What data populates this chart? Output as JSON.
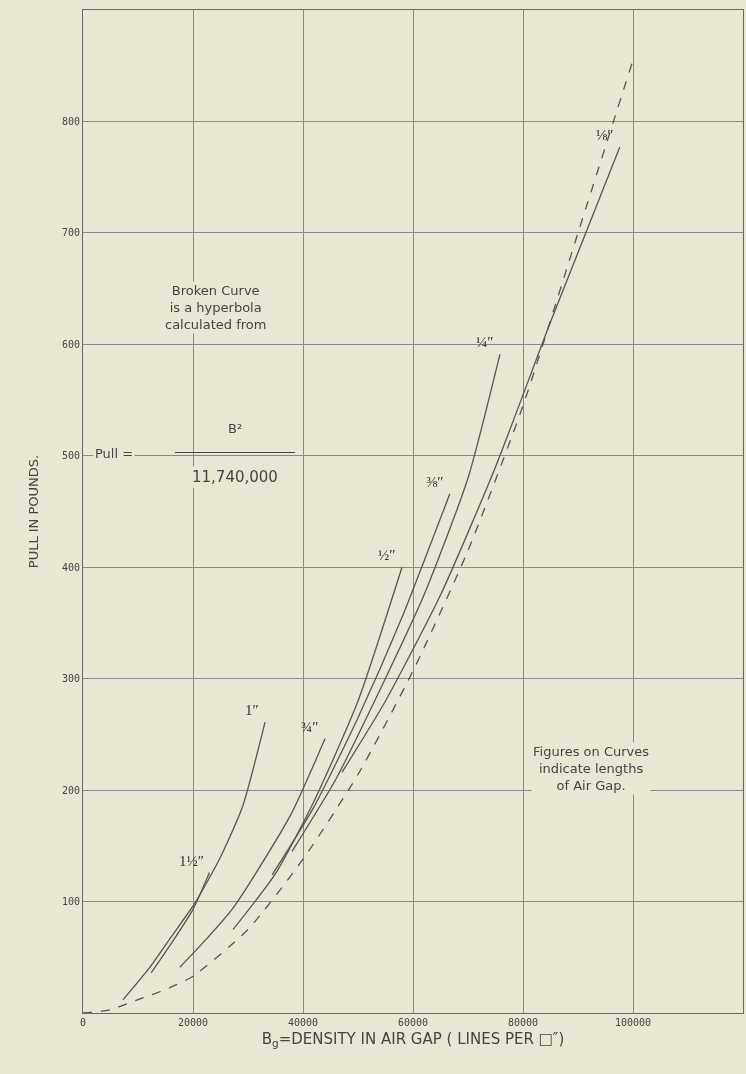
{
  "chart_data": {
    "type": "line",
    "xlabel": "B$_{g}$=DENSITY IN AIR GAP ( LINES PER □″)",
    "ylabel": "PULL IN POUNDS.",
    "annotations": [
      "Broken Curve\nis a hyperbola\ncalculated from",
      "Pull =",
      "B²",
      "11,740,000",
      "Figures on Curves\nindicate lengths\nof Air Gap."
    ],
    "series": [
      {
        "name": "1″",
        "color": "#555555",
        "line_style": "solid",
        "x": [
          7300,
          12000,
          16000,
          20400,
          25000,
          29000,
          33100
        ],
        "values": [
          12,
          40,
          68,
          99,
          140,
          185,
          261
        ]
      },
      {
        "name": "1½″",
        "color": "#555555",
        "line_style": "solid",
        "x": [
          12400,
          16000,
          20000,
          23000
        ],
        "values": [
          36,
          62,
          93,
          126
        ]
      },
      {
        "name": "¾″",
        "color": "#555555",
        "line_style": "solid",
        "x": [
          17600,
          22000,
          27100,
          32000,
          38000,
          44000
        ],
        "values": [
          41,
          64,
          93,
          130,
          180,
          246
        ]
      },
      {
        "name": "½″",
        "color": "#555555",
        "line_style": "solid",
        "x": [
          27300,
          35000,
          42000,
          50000,
          58000
        ],
        "values": [
          75,
          125,
          190,
          280,
          400
        ]
      },
      {
        "name": "⅜″",
        "color": "#555555",
        "line_style": "solid",
        "x": [
          34400,
          42000,
          50000,
          58000,
          66700
        ],
        "values": [
          124,
          185,
          265,
          355,
          466
        ]
      },
      {
        "name": "¼″",
        "color": "#555555",
        "line_style": "solid",
        "x": [
          38000,
          46000,
          54000,
          62000,
          70000,
          75800
        ],
        "values": [
          145,
          210,
          290,
          375,
          480,
          591
        ]
      },
      {
        "name": "⅛″",
        "color": "#555555",
        "line_style": "solid",
        "x": [
          47100,
          55000,
          65000,
          75000,
          85000,
          97600
        ],
        "values": [
          216,
          280,
          375,
          490,
          620,
          777
        ]
      },
      {
        "color": "#555555",
        "line_style": "dashed",
        "x": [
          0,
          5000,
          10000,
          15000,
          20000,
          30000,
          40000,
          50000,
          60000,
          70000,
          80000,
          90000,
          100000
        ],
        "values": [
          0,
          3,
          12,
          21,
          33,
          75,
          138,
          214,
          307,
          415,
          545,
          700,
          855
        ]
      }
    ],
    "xlim": [
      0,
      120000
    ],
    "ylim": [
      0,
      900
    ],
    "xticks": [
      0,
      20000,
      40000,
      60000,
      80000,
      100000
    ],
    "yticks": [
      {
        "value": 0,
        "label": null
      },
      100,
      200,
      300,
      400,
      500,
      600,
      700,
      800
    ],
    "grid": true,
    "legend": false
  }
}
